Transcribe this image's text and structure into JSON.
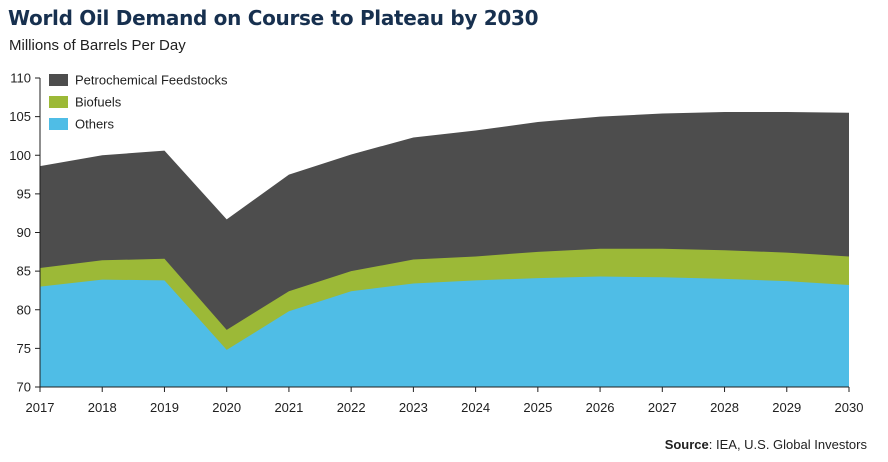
{
  "title": "World Oil Demand on Course to Plateau by 2030",
  "subtitle": "Millions of Barrels Per Day",
  "source": {
    "label": "Source",
    "text": ": IEA, U.S. Global Investors"
  },
  "colors": {
    "petrochemical": "#4d4d4d",
    "biofuels": "#9cb937",
    "others": "#4fbde6",
    "axis": "#1f1f1f",
    "title": "#17304f"
  },
  "chart_data": {
    "type": "area",
    "stacked": true,
    "x": [
      "2017",
      "2018",
      "2019",
      "2020",
      "2021",
      "2022",
      "2023",
      "2024",
      "2025",
      "2026",
      "2027",
      "2028",
      "2029",
      "2030"
    ],
    "ylim": [
      70,
      110
    ],
    "yticks": [
      70,
      75,
      80,
      85,
      90,
      95,
      100,
      105,
      110
    ],
    "grid": false,
    "legend_position": "top-left",
    "series": [
      {
        "name": "Others",
        "color": "#4fbde6",
        "cumulative": [
          83.0,
          83.9,
          83.8,
          74.8,
          79.8,
          82.4,
          83.4,
          83.8,
          84.1,
          84.3,
          84.2,
          84.0,
          83.7,
          83.2
        ]
      },
      {
        "name": "Biofuels",
        "color": "#9cb937",
        "cumulative": [
          85.4,
          86.4,
          86.6,
          77.4,
          82.4,
          85.0,
          86.5,
          86.9,
          87.5,
          87.9,
          87.9,
          87.7,
          87.4,
          86.9
        ]
      },
      {
        "name": "Petrochemical Feedstocks",
        "color": "#4d4d4d",
        "cumulative": [
          98.6,
          100.0,
          100.6,
          91.7,
          97.5,
          100.1,
          102.3,
          103.2,
          104.3,
          105.0,
          105.4,
          105.6,
          105.6,
          105.5
        ]
      }
    ],
    "legend": [
      "Petrochemical Feedstocks",
      "Biofuels",
      "Others"
    ]
  }
}
